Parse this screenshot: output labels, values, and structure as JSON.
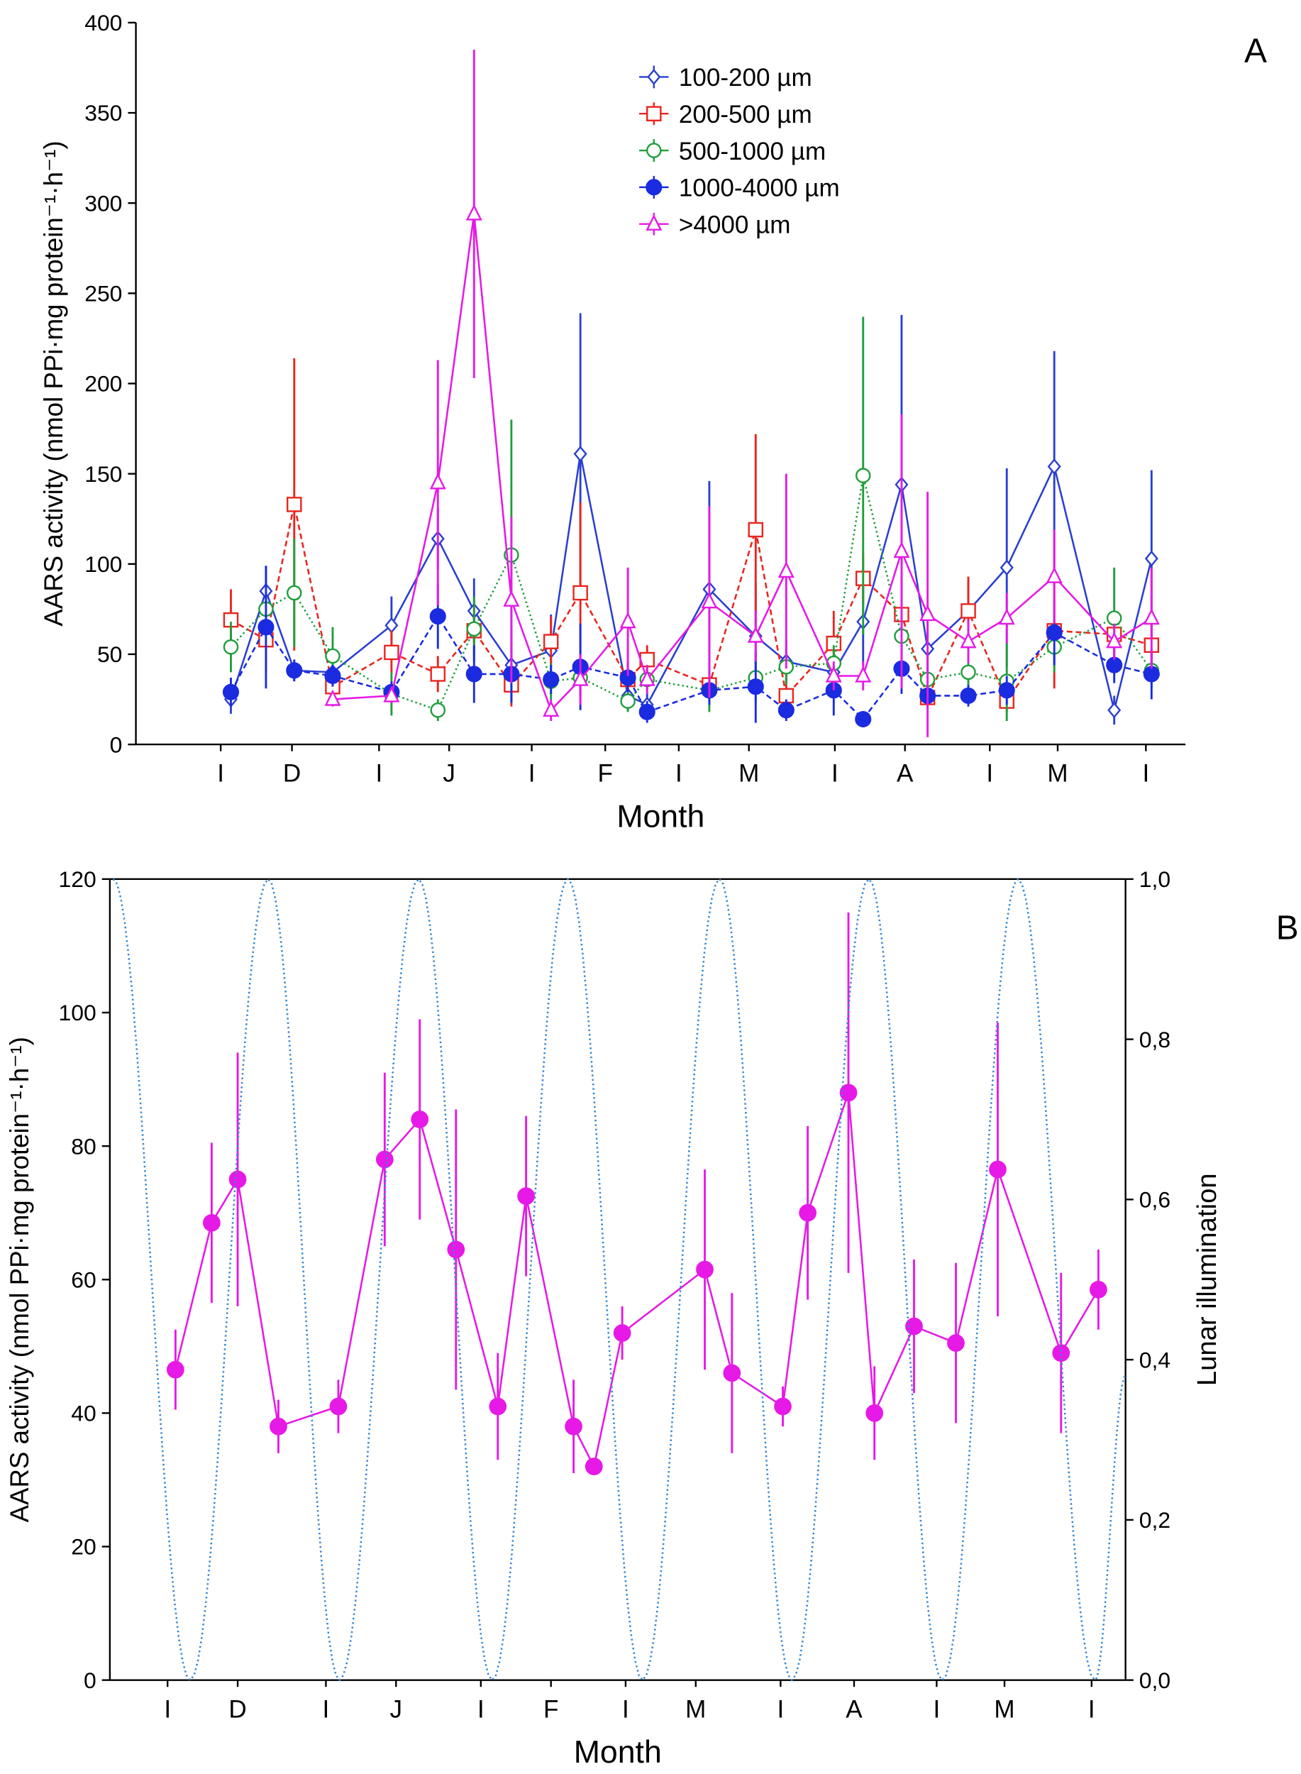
{
  "chart_data": [
    {
      "type": "line",
      "panel": "A",
      "ylabel": "AARS activity (nmol PPi·mg protein⁻¹·h⁻¹)",
      "xlabel": "Month",
      "xlim": [
        0,
        928
      ],
      "ylim": [
        0,
        400
      ],
      "yticks": [
        0,
        50,
        100,
        150,
        200,
        250,
        300,
        350,
        400
      ],
      "xticks": [
        {
          "value": 75,
          "label": "I"
        },
        {
          "value": 138,
          "label": "D"
        },
        {
          "value": 215,
          "label": "I"
        },
        {
          "value": 277,
          "label": "J"
        },
        {
          "value": 350,
          "label": "I"
        },
        {
          "value": 415,
          "label": "F"
        },
        {
          "value": 480,
          "label": "I"
        },
        {
          "value": 542,
          "label": "M"
        },
        {
          "value": 618,
          "label": "I"
        },
        {
          "value": 680,
          "label": "A"
        },
        {
          "value": 755,
          "label": "I"
        },
        {
          "value": 815,
          "label": "M"
        },
        {
          "value": 893,
          "label": "I"
        }
      ],
      "x": [
        84,
        115,
        140,
        174,
        226,
        267,
        299,
        332,
        367,
        393,
        435,
        452,
        507,
        548,
        575,
        617,
        643,
        677,
        700,
        736,
        770,
        812,
        865,
        898
      ],
      "legend": "upper center",
      "series": [
        {
          "name": "100-200 µm",
          "color": "#2a3fd0",
          "line": "solid",
          "marker": "diamond",
          "values": [
            25,
            85,
            41,
            40,
            66,
            114,
            74,
            44,
            52,
            161,
            27,
            22,
            86,
            60,
            46,
            40,
            68,
            144,
            53,
            74,
            98,
            154,
            19,
            103
          ],
          "errors": [
            8,
            14,
            6,
            6,
            16,
            17,
            18,
            20,
            20,
            78,
            8,
            6,
            60,
            30,
            12,
            8,
            24,
            94,
            16,
            16,
            55,
            64,
            8,
            49
          ]
        },
        {
          "name": "200-500 µm",
          "color": "#e8251f",
          "line": "dashed",
          "marker": "square",
          "values": [
            69,
            58,
            133,
            32,
            51,
            39,
            63,
            33,
            57,
            84,
            36,
            47,
            33,
            119,
            27,
            56,
            92,
            72,
            26,
            74,
            24,
            63,
            61,
            55
          ],
          "errors": [
            17,
            18,
            81,
            8,
            12,
            10,
            14,
            12,
            14,
            50,
            10,
            8,
            10,
            53,
            8,
            18,
            14,
            14,
            6,
            19,
            6,
            32,
            10,
            12
          ]
        },
        {
          "name": "500-1000 µm",
          "color": "#1f9e3a",
          "line": "dotted",
          "marker": "circle",
          "values": [
            54,
            75,
            84,
            49,
            28,
            19,
            64,
            105,
            35,
            37,
            24,
            36,
            30,
            37,
            43,
            45,
            149,
            60,
            36,
            40,
            35,
            54,
            70,
            41
          ],
          "errors": [
            14,
            14,
            30,
            16,
            12,
            6,
            18,
            75,
            10,
            10,
            6,
            8,
            12,
            14,
            10,
            10,
            88,
            16,
            10,
            10,
            22,
            14,
            28,
            10
          ]
        },
        {
          "name": "1000-4000 µm",
          "color": "#1a2be0",
          "line": "dashed",
          "marker": "filled",
          "values": [
            29,
            65,
            41,
            38,
            29,
            71,
            39,
            39,
            36,
            43,
            37,
            18,
            30,
            32,
            19,
            30,
            14,
            42,
            27,
            27,
            30,
            62,
            44,
            39
          ],
          "errors": [
            8,
            34,
            6,
            6,
            6,
            18,
            16,
            16,
            8,
            24,
            8,
            6,
            8,
            20,
            6,
            14,
            3,
            14,
            6,
            6,
            8,
            18,
            10,
            14
          ]
        },
        {
          "name": ">4000 µm",
          "color": "#e619e6",
          "line": "solid",
          "marker": "triangle",
          "values": [
            null,
            null,
            null,
            25,
            27,
            145,
            294,
            80,
            19,
            36,
            68,
            36,
            79,
            60,
            96,
            38,
            38,
            107,
            72,
            57,
            70,
            93,
            57,
            70
          ],
          "errors": [
            null,
            null,
            null,
            4,
            4,
            68,
            91,
            46,
            6,
            14,
            30,
            8,
            53,
            14,
            54,
            8,
            8,
            76,
            68,
            12,
            14,
            26,
            10,
            28
          ]
        }
      ]
    },
    {
      "type": "line",
      "panel": "B",
      "ylabel": "AARS activity (nmol PPi·mg protein⁻¹·h⁻¹)",
      "y2label": "Lunar illumination",
      "xlabel": "Month",
      "xlim": [
        0,
        898
      ],
      "ylim": [
        0,
        120
      ],
      "yticks": [
        0,
        20,
        40,
        60,
        80,
        100,
        120
      ],
      "y2lim": [
        0,
        1
      ],
      "y2ticks": [
        {
          "value": 0,
          "label": "0,0"
        },
        {
          "value": 0.2,
          "label": "0,2"
        },
        {
          "value": 0.4,
          "label": "0,4"
        },
        {
          "value": 0.6,
          "label": "0,6"
        },
        {
          "value": 0.8,
          "label": "0,8"
        },
        {
          "value": 1,
          "label": "1,0"
        }
      ],
      "xticks": [
        {
          "value": 51,
          "label": "I"
        },
        {
          "value": 113,
          "label": "D"
        },
        {
          "value": 191,
          "label": "I"
        },
        {
          "value": 253,
          "label": "J"
        },
        {
          "value": 328,
          "label": "I"
        },
        {
          "value": 390,
          "label": "F"
        },
        {
          "value": 456,
          "label": "I"
        },
        {
          "value": 518,
          "label": "M"
        },
        {
          "value": 593,
          "label": "I"
        },
        {
          "value": 658,
          "label": "A"
        },
        {
          "value": 731,
          "label": "I"
        },
        {
          "value": 791,
          "label": "M"
        },
        {
          "value": 868,
          "label": "I"
        }
      ],
      "series": [
        {
          "color": "#e619e6",
          "line": "solid",
          "marker": "filled",
          "x": [
            58,
            90,
            113,
            149,
            202,
            243,
            274,
            306,
            343,
            368,
            410,
            428,
            453,
            526,
            550,
            595,
            617,
            653,
            676,
            711,
            748,
            785,
            841,
            874
          ],
          "values": [
            46.5,
            68.5,
            75,
            38,
            41,
            78,
            84,
            64.5,
            41,
            72.5,
            38,
            32,
            52,
            61.5,
            46,
            41,
            70,
            88,
            40,
            53,
            50.5,
            76.5,
            49,
            58.5
          ],
          "errors": [
            6,
            12,
            19,
            4,
            4,
            13,
            15,
            21,
            8,
            12,
            7,
            0,
            4,
            15,
            12,
            3,
            13,
            27,
            7,
            10,
            12,
            22,
            12,
            6
          ]
        },
        {
          "color": "#3a86d0",
          "line": "dotted",
          "marker": "none",
          "axis": "y2",
          "x": [
            3,
            71,
            140,
            203,
            273,
            338,
            405,
            471,
            539,
            603,
            671,
            736,
            803,
            871,
            898
          ],
          "values": [
            1,
            0,
            1,
            0,
            1,
            0,
            1,
            0,
            1,
            0,
            1,
            0,
            1,
            0,
            0.38
          ]
        }
      ]
    }
  ]
}
